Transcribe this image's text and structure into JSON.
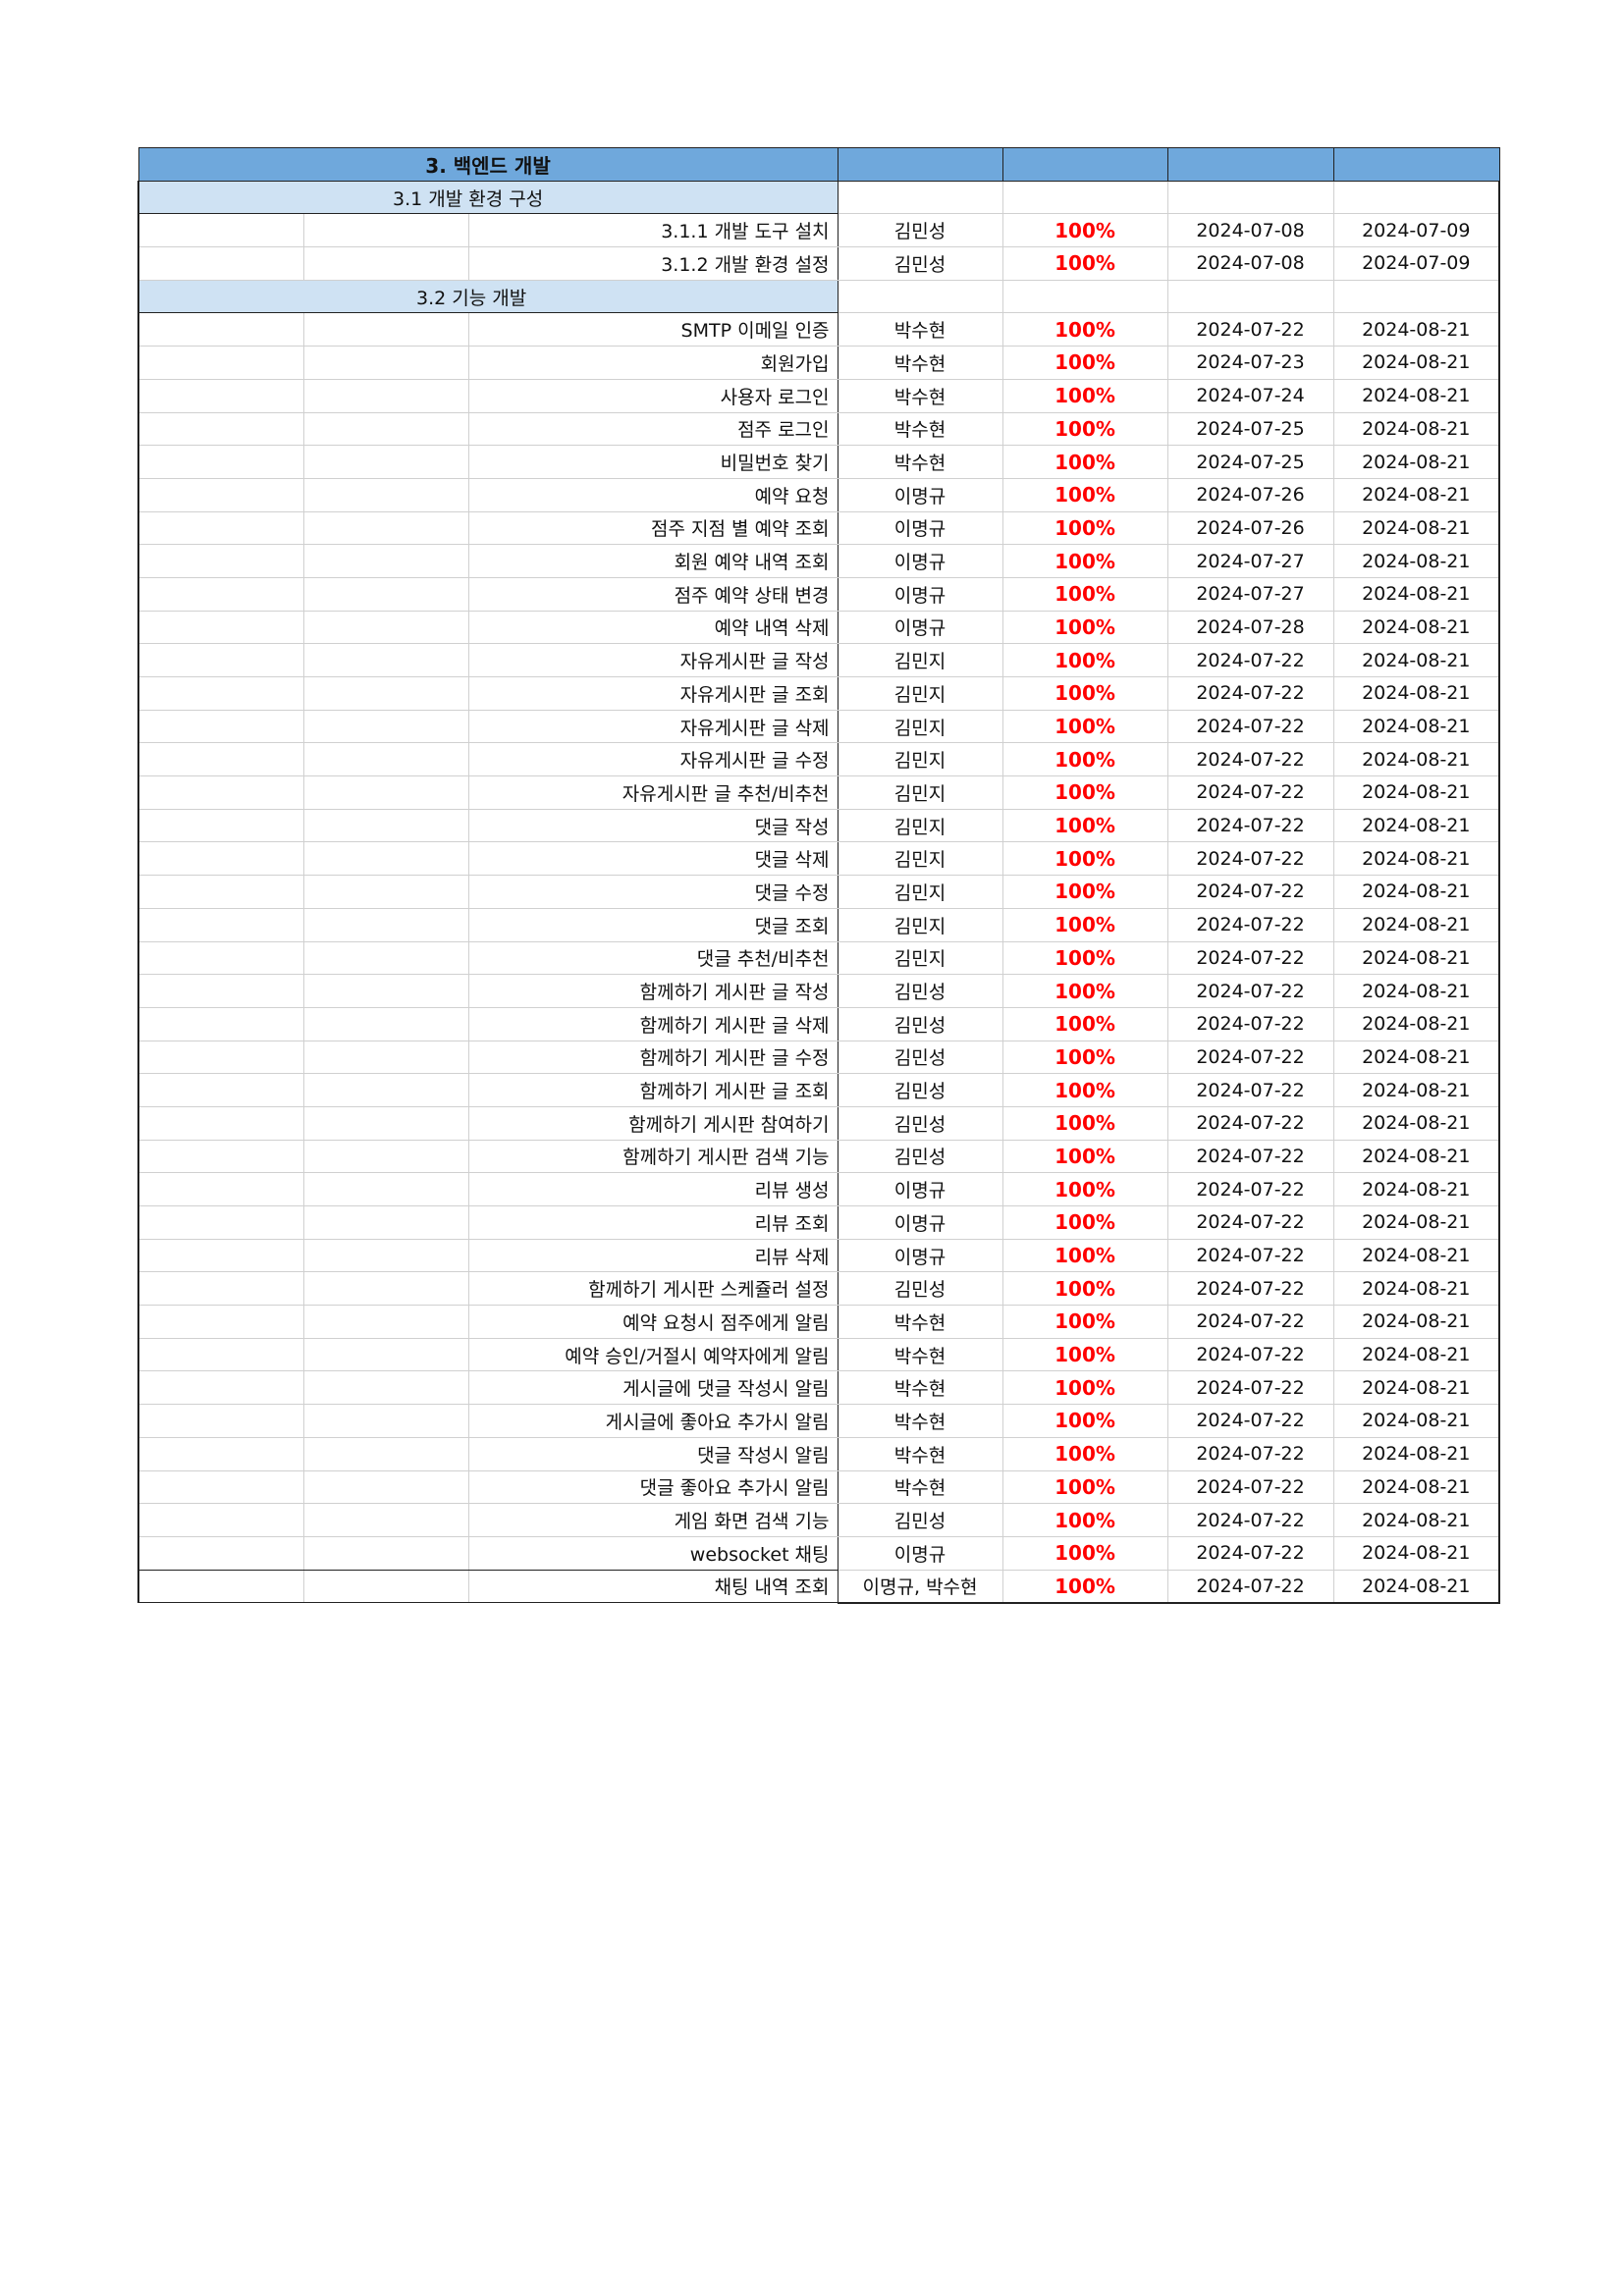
{
  "section": {
    "title": "3. 백엔드 개발",
    "subsections": [
      {
        "label": "3.1 개발 환경 구성",
        "tasks": [
          {
            "name": "3.1.1 개발 도구 설치",
            "owner": "김민성",
            "progress": "100%",
            "start": "2024-07-08",
            "end": "2024-07-09"
          },
          {
            "name": "3.1.2 개발 환경 설정",
            "owner": "김민성",
            "progress": "100%",
            "start": "2024-07-08",
            "end": "2024-07-09"
          }
        ]
      },
      {
        "label": "3.2 기능 개발",
        "tasks": [
          {
            "name": "SMTP 이메일 인증",
            "owner": "박수현",
            "progress": "100%",
            "start": "2024-07-22",
            "end": "2024-08-21"
          },
          {
            "name": "회원가입",
            "owner": "박수현",
            "progress": "100%",
            "start": "2024-07-23",
            "end": "2024-08-21"
          },
          {
            "name": "사용자 로그인",
            "owner": "박수현",
            "progress": "100%",
            "start": "2024-07-24",
            "end": "2024-08-21"
          },
          {
            "name": "점주 로그인",
            "owner": "박수현",
            "progress": "100%",
            "start": "2024-07-25",
            "end": "2024-08-21"
          },
          {
            "name": "비밀번호 찾기",
            "owner": "박수현",
            "progress": "100%",
            "start": "2024-07-25",
            "end": "2024-08-21"
          },
          {
            "name": "예약 요청",
            "owner": "이명규",
            "progress": "100%",
            "start": "2024-07-26",
            "end": "2024-08-21"
          },
          {
            "name": "점주 지점 별 예약 조회",
            "owner": "이명규",
            "progress": "100%",
            "start": "2024-07-26",
            "end": "2024-08-21"
          },
          {
            "name": "회원 예약 내역 조회",
            "owner": "이명규",
            "progress": "100%",
            "start": "2024-07-27",
            "end": "2024-08-21"
          },
          {
            "name": "점주 예약 상태 변경",
            "owner": "이명규",
            "progress": "100%",
            "start": "2024-07-27",
            "end": "2024-08-21"
          },
          {
            "name": "예약 내역 삭제",
            "owner": "이명규",
            "progress": "100%",
            "start": "2024-07-28",
            "end": "2024-08-21"
          },
          {
            "name": "자유게시판 글 작성",
            "owner": "김민지",
            "progress": "100%",
            "start": "2024-07-22",
            "end": "2024-08-21"
          },
          {
            "name": "자유게시판 글 조회",
            "owner": "김민지",
            "progress": "100%",
            "start": "2024-07-22",
            "end": "2024-08-21"
          },
          {
            "name": "자유게시판 글 삭제",
            "owner": "김민지",
            "progress": "100%",
            "start": "2024-07-22",
            "end": "2024-08-21"
          },
          {
            "name": "자유게시판 글 수정",
            "owner": "김민지",
            "progress": "100%",
            "start": "2024-07-22",
            "end": "2024-08-21"
          },
          {
            "name": "자유게시판 글 추천/비추천",
            "owner": "김민지",
            "progress": "100%",
            "start": "2024-07-22",
            "end": "2024-08-21"
          },
          {
            "name": "댓글 작성",
            "owner": "김민지",
            "progress": "100%",
            "start": "2024-07-22",
            "end": "2024-08-21"
          },
          {
            "name": "댓글 삭제",
            "owner": "김민지",
            "progress": "100%",
            "start": "2024-07-22",
            "end": "2024-08-21"
          },
          {
            "name": "댓글 수정",
            "owner": "김민지",
            "progress": "100%",
            "start": "2024-07-22",
            "end": "2024-08-21"
          },
          {
            "name": "댓글 조회",
            "owner": "김민지",
            "progress": "100%",
            "start": "2024-07-22",
            "end": "2024-08-21"
          },
          {
            "name": "댓글 추천/비추천",
            "owner": "김민지",
            "progress": "100%",
            "start": "2024-07-22",
            "end": "2024-08-21"
          },
          {
            "name": "함께하기 게시판 글 작성",
            "owner": "김민성",
            "progress": "100%",
            "start": "2024-07-22",
            "end": "2024-08-21"
          },
          {
            "name": "함께하기 게시판 글 삭제",
            "owner": "김민성",
            "progress": "100%",
            "start": "2024-07-22",
            "end": "2024-08-21"
          },
          {
            "name": "함께하기 게시판 글 수정",
            "owner": "김민성",
            "progress": "100%",
            "start": "2024-07-22",
            "end": "2024-08-21"
          },
          {
            "name": "함께하기 게시판 글 조회",
            "owner": "김민성",
            "progress": "100%",
            "start": "2024-07-22",
            "end": "2024-08-21"
          },
          {
            "name": "함께하기 게시판 참여하기",
            "owner": "김민성",
            "progress": "100%",
            "start": "2024-07-22",
            "end": "2024-08-21"
          },
          {
            "name": "함께하기 게시판 검색 기능",
            "owner": "김민성",
            "progress": "100%",
            "start": "2024-07-22",
            "end": "2024-08-21"
          },
          {
            "name": "리뷰 생성",
            "owner": "이명규",
            "progress": "100%",
            "start": "2024-07-22",
            "end": "2024-08-21"
          },
          {
            "name": "리뷰 조회",
            "owner": "이명규",
            "progress": "100%",
            "start": "2024-07-22",
            "end": "2024-08-21"
          },
          {
            "name": "리뷰 삭제",
            "owner": "이명규",
            "progress": "100%",
            "start": "2024-07-22",
            "end": "2024-08-21"
          },
          {
            "name": "함께하기 게시판 스케쥴러 설정",
            "owner": "김민성",
            "progress": "100%",
            "start": "2024-07-22",
            "end": "2024-08-21"
          },
          {
            "name": "예약 요청시 점주에게 알림",
            "owner": "박수현",
            "progress": "100%",
            "start": "2024-07-22",
            "end": "2024-08-21"
          },
          {
            "name": "예약 승인/거절시 예약자에게 알림",
            "owner": "박수현",
            "progress": "100%",
            "start": "2024-07-22",
            "end": "2024-08-21"
          },
          {
            "name": "게시글에 댓글 작성시 알림",
            "owner": "박수현",
            "progress": "100%",
            "start": "2024-07-22",
            "end": "2024-08-21"
          },
          {
            "name": "게시글에 좋아요 추가시 알림",
            "owner": "박수현",
            "progress": "100%",
            "start": "2024-07-22",
            "end": "2024-08-21"
          },
          {
            "name": "댓글 작성시 알림",
            "owner": "박수현",
            "progress": "100%",
            "start": "2024-07-22",
            "end": "2024-08-21"
          },
          {
            "name": "댓글 좋아요 추가시 알림",
            "owner": "박수현",
            "progress": "100%",
            "start": "2024-07-22",
            "end": "2024-08-21"
          },
          {
            "name": "게임 화면 검색 기능",
            "owner": "김민성",
            "progress": "100%",
            "start": "2024-07-22",
            "end": "2024-08-21"
          },
          {
            "name": "websocket 채팅",
            "owner": "이명규",
            "progress": "100%",
            "start": "2024-07-22",
            "end": "2024-08-21"
          },
          {
            "name": "채팅 내역 조회",
            "owner": "이명규, 박수현",
            "progress": "100%",
            "start": "2024-07-22",
            "end": "2024-08-21"
          }
        ]
      }
    ]
  },
  "colors": {
    "header_fill": "#6fa8dc",
    "subheader_fill": "#cfe2f3",
    "progress_text": "#ff0000"
  }
}
